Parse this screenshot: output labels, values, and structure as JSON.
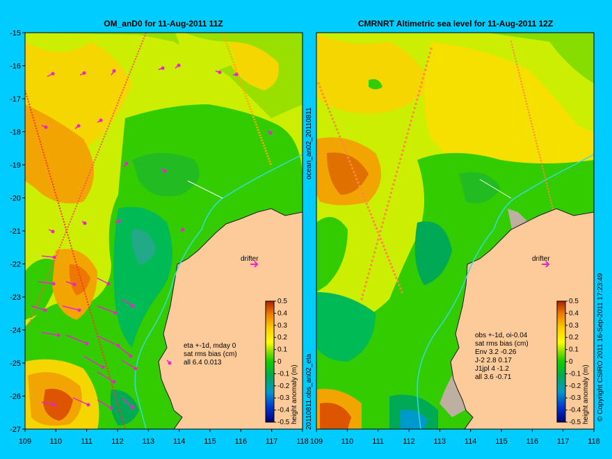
{
  "figure": {
    "background": "#00ccff",
    "land_color": "#fdcb9a",
    "coast_color": "#1a1a1a"
  },
  "panels": [
    {
      "id": "left",
      "title": "OM_anD0 for 11-Aug-2011 11Z",
      "drifter_label": "drifter",
      "stats_lines": [
        "eta +-1d, mday 0",
        "sat rms bias (cm)",
        "all 6.4 0.013"
      ],
      "side_label": "20110811.obs_an02_eta"
    },
    {
      "id": "right",
      "title": "CMRNRT Altimetric sea level  for 11-Aug-2011 12Z",
      "drifter_label": "drifter",
      "stats_lines": [
        "obs +-1d, oi-0.04",
        "sat rms bias (cm)",
        "Env   3.2 -0.26",
        "J-2   2.8 0.17",
        "J1jpl 4 -1.2",
        "all 3.6 -0.71"
      ],
      "side_label": "ocean_an02_20110811"
    }
  ],
  "axes": {
    "x_ticks": [
      "109",
      "110",
      "111",
      "112",
      "113",
      "114",
      "115",
      "116",
      "117",
      "118"
    ],
    "y_ticks": [
      "-15",
      "-16",
      "-17",
      "-18",
      "-19",
      "-20",
      "-21",
      "-22",
      "-23",
      "-24",
      "-25",
      "-26",
      "-27"
    ],
    "xlim": [
      109,
      118
    ],
    "ylim": [
      -27,
      -15
    ]
  },
  "colorbar": {
    "label": "height anomaly (m)",
    "ticks": [
      "0.5",
      "0.4",
      "0.3",
      "0.2",
      "0.1",
      "0",
      "-0.1",
      "-0.2",
      "-0.3",
      "-0.4",
      "-0.5"
    ],
    "range": [
      -0.5,
      0.5
    ]
  },
  "copyright": "© Copyright CSIRO 2011   16-Sep-2011 17:23:49"
}
